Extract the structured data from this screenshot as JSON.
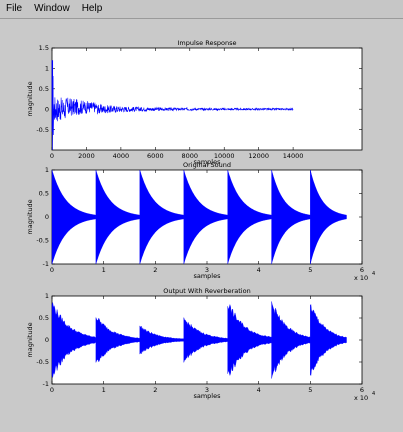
{
  "menu": {
    "items": [
      {
        "label": "File"
      },
      {
        "label": "Window"
      },
      {
        "label": "Help"
      }
    ]
  },
  "colors": {
    "signal": "#0000ff",
    "axes_bg": "#ffffff",
    "figure_bg": "#c9c9c9"
  },
  "chart_data": [
    {
      "type": "line",
      "title": "Impulse Response",
      "xlabel": "samples",
      "ylabel": "magnitude",
      "xlim": [
        0,
        18000
      ],
      "ylim": [
        -1,
        1.5
      ],
      "x_ticks": [
        "0",
        "2000",
        "4000",
        "6000",
        "8000",
        "10000",
        "12000",
        "14000"
      ],
      "x_tick_values": [
        0,
        2000,
        4000,
        6000,
        8000,
        10000,
        12000,
        14000
      ],
      "y_ticks": [
        "-0.5",
        "0",
        "0.5",
        "1",
        "1.5"
      ],
      "y_tick_values": [
        -0.5,
        0,
        0.5,
        1,
        1.5
      ],
      "x_exponent": "",
      "signal_extent": [
        0,
        14000
      ],
      "events": [
        {
          "at": 0,
          "peak": 1.2
        }
      ]
    },
    {
      "type": "line",
      "title": "Original Sound",
      "xlabel": "samples",
      "ylabel": "magnitude",
      "xlim": [
        0,
        6
      ],
      "ylim": [
        -1,
        1
      ],
      "x_ticks": [
        "0",
        "1",
        "2",
        "3",
        "4",
        "5",
        "6"
      ],
      "x_tick_values": [
        0,
        1,
        2,
        3,
        4,
        5,
        6
      ],
      "y_ticks": [
        "-1",
        "-0.5",
        "0",
        "0.5",
        "1"
      ],
      "y_tick_values": [
        -1,
        -0.5,
        0,
        0.5,
        1
      ],
      "x_exponent": "x 10",
      "x_exponent_power": "4",
      "signal_extent": [
        0,
        5.7
      ],
      "events": [
        {
          "at": 0.0,
          "peak": 1.0
        },
        {
          "at": 0.85,
          "peak": 1.0
        },
        {
          "at": 1.7,
          "peak": 1.0
        },
        {
          "at": 2.55,
          "peak": 1.0
        },
        {
          "at": 3.4,
          "peak": 1.0
        },
        {
          "at": 4.25,
          "peak": 1.0
        },
        {
          "at": 5.0,
          "peak": 1.0
        }
      ]
    },
    {
      "type": "line",
      "title": "Output With Reverberation",
      "xlabel": "samples",
      "ylabel": "magnitude",
      "xlim": [
        0,
        6
      ],
      "ylim": [
        -1,
        1
      ],
      "x_ticks": [
        "0",
        "1",
        "2",
        "3",
        "4",
        "5",
        "6"
      ],
      "x_tick_values": [
        0,
        1,
        2,
        3,
        4,
        5,
        6
      ],
      "y_ticks": [
        "-1",
        "-0.5",
        "0",
        "0.5",
        "1"
      ],
      "y_tick_values": [
        -1,
        -0.5,
        0,
        0.5,
        1
      ],
      "x_exponent": "x 10",
      "x_exponent_power": "4",
      "signal_extent": [
        0,
        5.7
      ],
      "events": [
        {
          "at": 0.0,
          "peak": 0.95
        },
        {
          "at": 0.85,
          "peak": 0.6
        },
        {
          "at": 1.7,
          "peak": 0.35
        },
        {
          "at": 2.55,
          "peak": 0.55
        },
        {
          "at": 3.4,
          "peak": 0.95
        },
        {
          "at": 4.25,
          "peak": 0.95
        },
        {
          "at": 5.0,
          "peak": 0.9
        }
      ]
    }
  ]
}
